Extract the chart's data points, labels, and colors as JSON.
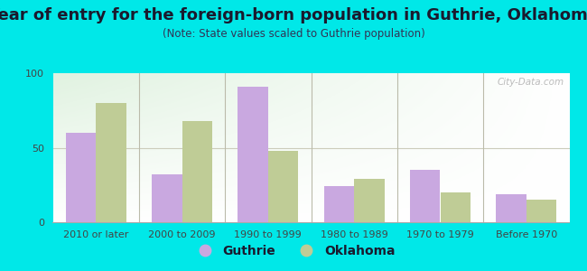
{
  "title": "Year of entry for the foreign-born population in Guthrie, Oklahoma",
  "subtitle": "(Note: State values scaled to Guthrie population)",
  "categories": [
    "2010 or later",
    "2000 to 2009",
    "1990 to 1999",
    "1980 to 1989",
    "1970 to 1979",
    "Before 1970"
  ],
  "guthrie_values": [
    60,
    32,
    91,
    24,
    35,
    19
  ],
  "oklahoma_values": [
    80,
    68,
    48,
    29,
    20,
    15
  ],
  "guthrie_color": "#c9a8e0",
  "oklahoma_color": "#bfcc96",
  "ylim": [
    0,
    100
  ],
  "yticks": [
    0,
    50,
    100
  ],
  "background_outer": "#00e8e8",
  "bar_width": 0.35,
  "title_fontsize": 13,
  "subtitle_fontsize": 8.5,
  "tick_fontsize": 8,
  "legend_fontsize": 10
}
